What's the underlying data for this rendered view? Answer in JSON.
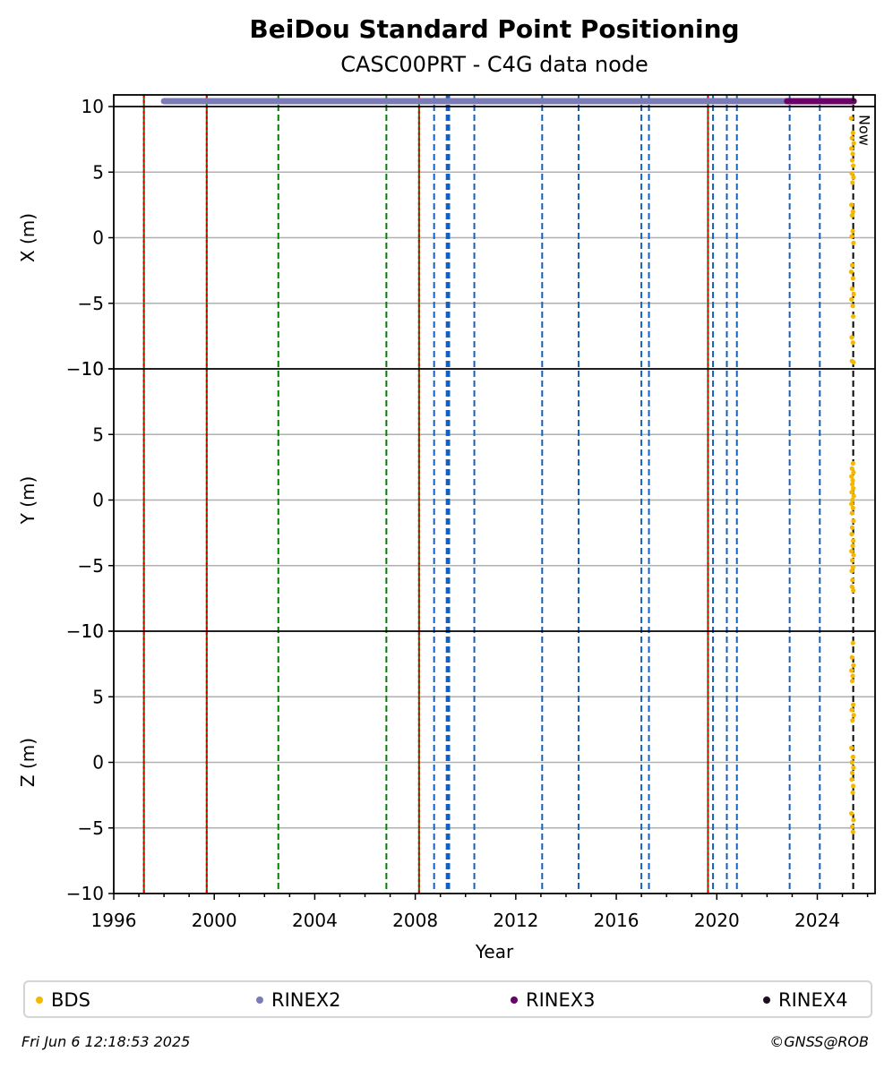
{
  "title": "BeiDou Standard Point Positioning",
  "subtitle": "CASC00PRT - C4G data node",
  "footer": {
    "timestamp": "Fri Jun  6 12:18:53 2025",
    "credit": "©GNSS@ROB"
  },
  "chart_data": {
    "type": "scatter",
    "xlabel": "Year",
    "xlim": [
      1996,
      2026.3
    ],
    "x_ticks": [
      1996,
      2000,
      2004,
      2008,
      2012,
      2016,
      2020,
      2024
    ],
    "ylim": [
      -10,
      10
    ],
    "y_ticks": [
      -10,
      -5,
      0,
      5,
      10
    ],
    "grid": "horizontal",
    "legend_position": "bottom",
    "now_label": "Now",
    "now_x": 2025.43,
    "panels": [
      {
        "ylabel": "X (m)",
        "points": [
          [
            2025.35,
            9.1
          ],
          [
            2025.42,
            8.0
          ],
          [
            2025.38,
            7.6
          ],
          [
            2025.45,
            7.2
          ],
          [
            2025.36,
            6.8
          ],
          [
            2025.41,
            6.4
          ],
          [
            2025.39,
            5.9
          ],
          [
            2025.43,
            5.5
          ],
          [
            2025.37,
            4.9
          ],
          [
            2025.44,
            4.6
          ],
          [
            2025.4,
            4.2
          ],
          [
            2025.36,
            2.5
          ],
          [
            2025.42,
            2.0
          ],
          [
            2025.38,
            1.7
          ],
          [
            2025.41,
            0.5
          ],
          [
            2025.37,
            0.1
          ],
          [
            2025.44,
            -0.4
          ],
          [
            2025.39,
            -2.1
          ],
          [
            2025.35,
            -2.6
          ],
          [
            2025.42,
            -3.1
          ],
          [
            2025.38,
            -3.9
          ],
          [
            2025.45,
            -4.3
          ],
          [
            2025.36,
            -4.7
          ],
          [
            2025.41,
            -5.2
          ],
          [
            2025.43,
            -6.0
          ],
          [
            2025.37,
            -7.6
          ],
          [
            2025.42,
            -8.0
          ],
          [
            2025.38,
            -9.4
          ],
          [
            2025.44,
            -9.5
          ]
        ]
      },
      {
        "ylabel": "Y (m)",
        "points": [
          [
            2025.42,
            2.8
          ],
          [
            2025.38,
            2.4
          ],
          [
            2025.44,
            2.1
          ],
          [
            2025.36,
            1.8
          ],
          [
            2025.41,
            1.5
          ],
          [
            2025.39,
            1.2
          ],
          [
            2025.43,
            0.9
          ],
          [
            2025.37,
            0.6
          ],
          [
            2025.45,
            0.3
          ],
          [
            2025.4,
            0.0
          ],
          [
            2025.36,
            -0.3
          ],
          [
            2025.42,
            -0.6
          ],
          [
            2025.38,
            -1.0
          ],
          [
            2025.44,
            -1.6
          ],
          [
            2025.39,
            -2.1
          ],
          [
            2025.37,
            -2.6
          ],
          [
            2025.43,
            -3.1
          ],
          [
            2025.41,
            -3.5
          ],
          [
            2025.36,
            -3.9
          ],
          [
            2025.44,
            -4.2
          ],
          [
            2025.39,
            -4.6
          ],
          [
            2025.42,
            -5.1
          ],
          [
            2025.37,
            -5.4
          ],
          [
            2025.4,
            -6.1
          ],
          [
            2025.38,
            -6.6
          ],
          [
            2025.43,
            -6.9
          ]
        ]
      },
      {
        "ylabel": "Z (m)",
        "points": [
          [
            2025.42,
            9.1
          ],
          [
            2025.38,
            8.0
          ],
          [
            2025.44,
            7.4
          ],
          [
            2025.36,
            7.0
          ],
          [
            2025.41,
            6.6
          ],
          [
            2025.39,
            6.2
          ],
          [
            2025.43,
            4.4
          ],
          [
            2025.37,
            4.0
          ],
          [
            2025.45,
            3.6
          ],
          [
            2025.4,
            3.2
          ],
          [
            2025.36,
            1.1
          ],
          [
            2025.42,
            0.4
          ],
          [
            2025.38,
            0.0
          ],
          [
            2025.44,
            -0.4
          ],
          [
            2025.39,
            -0.8
          ],
          [
            2025.37,
            -1.3
          ],
          [
            2025.43,
            -1.8
          ],
          [
            2025.41,
            -2.3
          ],
          [
            2025.36,
            -3.9
          ],
          [
            2025.44,
            -4.4
          ],
          [
            2025.39,
            -4.9
          ],
          [
            2025.42,
            -5.3
          ]
        ]
      }
    ],
    "rinex_ranges": [
      {
        "name": "RINEX2",
        "start": 1998.0,
        "end": 2022.8,
        "color": "#7b7bb8"
      },
      {
        "name": "RINEX3",
        "start": 2022.8,
        "end": 2025.45,
        "color": "#6b0068"
      }
    ],
    "events": [
      {
        "x": 1997.2,
        "style": "green-red"
      },
      {
        "x": 1999.7,
        "style": "green-red"
      },
      {
        "x": 2002.55,
        "style": "green"
      },
      {
        "x": 2006.85,
        "style": "green"
      },
      {
        "x": 2008.15,
        "style": "green-red"
      },
      {
        "x": 2008.75,
        "style": "blue"
      },
      {
        "x": 2009.25,
        "style": "blue"
      },
      {
        "x": 2009.3,
        "style": "blue"
      },
      {
        "x": 2009.35,
        "style": "blue"
      },
      {
        "x": 2010.35,
        "style": "blue"
      },
      {
        "x": 2013.05,
        "style": "blue"
      },
      {
        "x": 2014.5,
        "style": "blue"
      },
      {
        "x": 2017.0,
        "style": "blue"
      },
      {
        "x": 2017.3,
        "style": "blue"
      },
      {
        "x": 2019.65,
        "style": "green-red"
      },
      {
        "x": 2019.85,
        "style": "blue"
      },
      {
        "x": 2020.4,
        "style": "blue"
      },
      {
        "x": 2020.8,
        "style": "blue"
      },
      {
        "x": 2022.9,
        "style": "blue"
      },
      {
        "x": 2024.1,
        "style": "blue"
      }
    ],
    "legend": [
      {
        "label": "BDS",
        "color": "#f5b800"
      },
      {
        "label": "RINEX2",
        "color": "#7b7bb8"
      },
      {
        "label": "RINEX3",
        "color": "#6b0068"
      },
      {
        "label": "RINEX4",
        "color": "#1c0f1c"
      }
    ]
  }
}
